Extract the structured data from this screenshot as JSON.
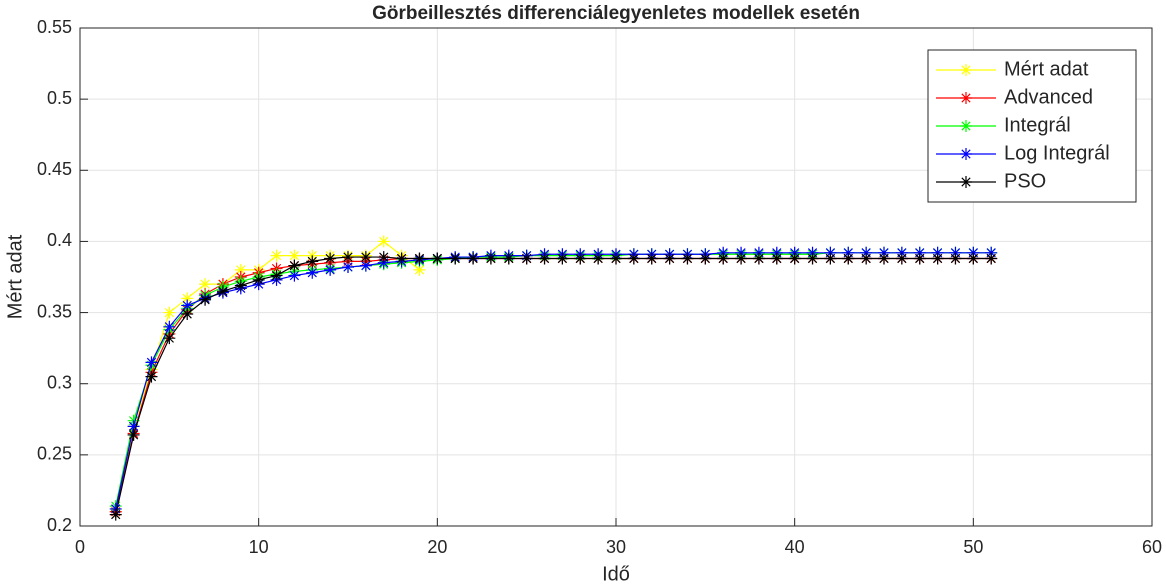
{
  "chart_data": {
    "type": "line",
    "title": "Görbeillesztés differenciálegyenletes modellek esetén",
    "xlabel": "Idő",
    "ylabel": "Mért adat",
    "x": [
      2,
      3,
      4,
      5,
      6,
      7,
      8,
      9,
      10,
      11,
      12,
      13,
      14,
      15,
      16,
      17,
      18,
      19,
      20,
      21,
      22,
      23,
      24,
      25,
      26,
      27,
      28,
      29,
      30,
      31,
      32,
      33,
      34,
      35,
      36,
      37,
      38,
      39,
      40,
      41,
      42,
      43,
      44,
      45,
      46,
      47,
      48,
      49,
      50,
      51
    ],
    "series": [
      {
        "name": "Mért adat",
        "color": "#ffff00",
        "values": [
          0.21,
          0.27,
          0.31,
          0.35,
          0.36,
          0.37,
          0.37,
          0.38,
          0.38,
          0.39,
          0.39,
          0.39,
          0.39,
          0.39,
          0.39,
          0.4,
          0.39,
          0.38,
          null,
          null,
          null,
          null,
          null,
          null,
          null,
          null,
          null,
          null,
          null,
          null,
          null,
          null,
          null,
          null,
          null,
          null,
          null,
          null,
          null,
          null,
          null,
          null,
          null,
          null,
          null,
          null,
          null,
          null,
          null,
          null
        ]
      },
      {
        "name": "Advanced",
        "color": "#ff0000",
        "values": [
          0.21,
          0.265,
          0.308,
          0.335,
          0.352,
          0.363,
          0.37,
          0.375,
          0.378,
          0.381,
          0.383,
          0.384,
          0.385,
          0.386,
          0.386,
          0.387,
          0.388,
          0.388,
          0.388,
          0.388,
          0.388,
          0.388,
          0.388,
          0.388,
          0.388,
          0.388,
          0.388,
          0.388,
          0.388,
          0.388,
          0.388,
          0.388,
          0.388,
          0.388,
          0.388,
          0.388,
          0.388,
          0.388,
          0.388,
          0.388,
          0.388,
          0.388,
          0.388,
          0.388,
          0.388,
          0.388,
          0.388,
          0.388,
          0.388,
          0.388
        ]
      },
      {
        "name": "Integrál",
        "color": "#00ff00",
        "values": [
          0.214,
          0.274,
          0.313,
          0.338,
          0.353,
          0.362,
          0.368,
          0.372,
          0.375,
          0.377,
          0.379,
          0.38,
          0.381,
          0.382,
          0.383,
          0.384,
          0.385,
          0.386,
          0.387,
          0.388,
          0.389,
          0.389,
          0.389,
          0.39,
          0.39,
          0.39,
          0.39,
          0.39,
          0.39,
          0.391,
          0.391,
          0.391,
          0.391,
          0.391,
          0.391,
          0.391,
          0.391,
          0.391,
          0.391,
          0.391,
          0.392,
          0.392,
          0.392,
          0.392,
          0.392,
          0.392,
          0.392,
          0.392,
          0.392,
          0.392
        ]
      },
      {
        "name": "Log Integrál",
        "color": "#0000ff",
        "values": [
          0.212,
          0.27,
          0.315,
          0.34,
          0.355,
          0.36,
          0.364,
          0.367,
          0.37,
          0.373,
          0.376,
          0.378,
          0.38,
          0.382,
          0.383,
          0.385,
          0.386,
          0.387,
          0.388,
          0.389,
          0.389,
          0.39,
          0.39,
          0.39,
          0.391,
          0.391,
          0.391,
          0.391,
          0.391,
          0.391,
          0.391,
          0.391,
          0.391,
          0.391,
          0.392,
          0.392,
          0.392,
          0.392,
          0.392,
          0.392,
          0.392,
          0.392,
          0.392,
          0.392,
          0.392,
          0.392,
          0.392,
          0.392,
          0.392,
          0.392
        ]
      },
      {
        "name": "PSO",
        "color": "#000000",
        "values": [
          0.208,
          0.264,
          0.305,
          0.332,
          0.349,
          0.359,
          0.365,
          0.369,
          0.373,
          0.376,
          0.383,
          0.386,
          0.388,
          0.389,
          0.389,
          0.389,
          0.388,
          0.388,
          0.388,
          0.388,
          0.388,
          0.388,
          0.388,
          0.388,
          0.388,
          0.388,
          0.388,
          0.388,
          0.388,
          0.388,
          0.388,
          0.388,
          0.388,
          0.388,
          0.388,
          0.388,
          0.388,
          0.388,
          0.388,
          0.388,
          0.388,
          0.388,
          0.388,
          0.388,
          0.388,
          0.388,
          0.388,
          0.388,
          0.388,
          0.388
        ]
      }
    ],
    "xlim": [
      0,
      60
    ],
    "xticks": [
      0,
      10,
      20,
      30,
      40,
      50,
      60
    ],
    "ylim": [
      0.2,
      0.55
    ],
    "yticks": [
      0.2,
      0.25,
      0.3,
      0.35,
      0.4,
      0.45,
      0.5,
      0.55
    ],
    "grid": true,
    "legend": "upper right",
    "marker": "asterisk"
  }
}
